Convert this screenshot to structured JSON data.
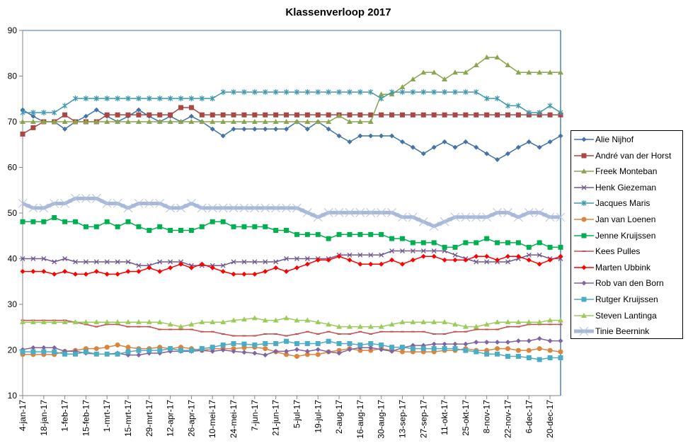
{
  "chart_data": {
    "type": "line",
    "title": "Klassenverloop 2017",
    "xlabel": "",
    "ylabel": "",
    "ylim": [
      10,
      90
    ],
    "yticks": [
      10,
      20,
      30,
      40,
      50,
      60,
      70,
      80,
      90
    ],
    "grid": false,
    "legend_position": "right",
    "x": [
      "4-jan-17",
      "11-jan-17",
      "18-jan-17",
      "25-jan-17",
      "1-feb-17",
      "8-feb-17",
      "15-feb-17",
      "22-feb-17",
      "1-mrt-17",
      "8-mrt-17",
      "15-mrt-17",
      "22-mrt-17",
      "29-mrt-17",
      "5-apr-17",
      "12-apr-17",
      "19-apr-17",
      "26-apr-17",
      "3-mei-17",
      "10-mei-17",
      "17-mei-17",
      "24-mei-17",
      "31-mei-17",
      "7-jun-17",
      "14-jun-17",
      "21-jun-17",
      "28-jun-17",
      "5-jul-17",
      "12-jul-17",
      "19-jul-17",
      "26-jul-17",
      "2-aug-17",
      "9-aug-17",
      "16-aug-17",
      "23-aug-17",
      "30-aug-17",
      "6-sep-17",
      "13-sep-17",
      "20-sep-17",
      "27-sep-17",
      "4-okt-17",
      "11-okt-17",
      "18-okt-17",
      "25-okt-17",
      "1-nov-17",
      "8-nov-17",
      "15-nov-17",
      "22-nov-17",
      "29-nov-17",
      "6-dec-17",
      "13-dec-17",
      "20-dec-17",
      "27-dec-17"
    ],
    "xticks": [
      "4-jan-17",
      "18-jan-17",
      "1-feb-17",
      "15-feb-17",
      "1-mrt-17",
      "15-mrt-17",
      "29-mrt-17",
      "12-apr-17",
      "26-apr-17",
      "10-mei-17",
      "24-mei-17",
      "7-jun-17",
      "21-jun-17",
      "5-jul-17",
      "19-jul-17",
      "2-aug-17",
      "16-aug-17",
      "30-aug-17",
      "13-sep-17",
      "27-sep-17",
      "11-okt-17",
      "25-okt-17",
      "8-nov-17",
      "22-nov-17",
      "6-dec-17",
      "20-dec-17"
    ],
    "series": [
      {
        "name": "Alie Nijhof",
        "color": "#4572a7",
        "marker": "diamond",
        "values": [
          72.6,
          71.2,
          70,
          70,
          68.4,
          70,
          71.2,
          72.6,
          71.2,
          70,
          71.2,
          72.6,
          71.2,
          70,
          71.2,
          70,
          71.2,
          70,
          68.4,
          66.9,
          68.4,
          68.4,
          68.4,
          68.4,
          68.4,
          68.4,
          70,
          68.4,
          70,
          68.4,
          66.9,
          65.6,
          66.9,
          66.9,
          66.9,
          66.9,
          65.6,
          64.4,
          63,
          64.4,
          65.6,
          64.4,
          65.6,
          64.4,
          63,
          61.7,
          63,
          64.4,
          65.6,
          64.4,
          65.6,
          66.9
        ]
      },
      {
        "name": "André van der Horst",
        "color": "#aa4643",
        "marker": "square",
        "values": [
          67.3,
          68.7,
          70,
          70,
          71.5,
          70,
          70,
          70,
          71.5,
          71.5,
          71.5,
          71.5,
          71.5,
          71.5,
          71.5,
          73.1,
          73.1,
          71.5,
          71.5,
          71.5,
          71.5,
          71.5,
          71.5,
          71.5,
          71.5,
          71.5,
          71.5,
          71.5,
          71.5,
          71.5,
          71.5,
          71.5,
          71.5,
          71.5,
          71.5,
          71.5,
          71.5,
          71.5,
          71.5,
          71.5,
          71.5,
          71.5,
          71.5,
          71.5,
          71.5,
          71.5,
          71.5,
          71.5,
          71.5,
          71.5,
          71.5,
          71.5
        ]
      },
      {
        "name": "Freek Monteban",
        "color": "#89a54e",
        "marker": "triangle",
        "values": [
          70,
          70,
          70,
          70,
          70,
          70,
          70,
          70,
          70,
          70,
          70,
          70,
          70,
          70,
          70,
          70,
          70,
          70,
          70,
          70,
          70,
          70,
          70,
          70,
          70,
          70,
          70,
          70,
          70,
          70,
          71.3,
          70,
          70,
          70,
          76,
          76,
          77.6,
          79.3,
          80.8,
          80.8,
          79.3,
          80.8,
          80.8,
          82.4,
          84.1,
          84.1,
          82.4,
          80.8,
          80.8,
          80.8,
          80.8,
          80.8
        ]
      },
      {
        "name": "Henk Giezeman",
        "color": "#71588f",
        "marker": "x",
        "values": [
          40,
          40,
          40,
          39.3,
          40,
          39.3,
          39.3,
          39.3,
          39.3,
          39.3,
          39.3,
          38.5,
          38.5,
          39.3,
          39.3,
          39.3,
          38.5,
          38.5,
          38.5,
          38.5,
          39.3,
          39.3,
          39.3,
          39.3,
          39.3,
          40,
          40,
          40,
          40,
          40,
          40.8,
          40.8,
          40.8,
          40.8,
          40.8,
          41.7,
          41.7,
          41.7,
          41.7,
          41.7,
          41.7,
          40.8,
          40,
          39.3,
          39.3,
          39.3,
          39.3,
          40,
          40.8,
          40.8,
          40,
          40
        ]
      },
      {
        "name": "Jacques Maris",
        "color": "#4198af",
        "marker": "asterisk",
        "values": [
          72,
          72,
          72,
          72,
          73.5,
          75.1,
          75.1,
          75.1,
          75.1,
          75.1,
          75.1,
          75.1,
          75.1,
          75.1,
          75.1,
          75.1,
          75.1,
          75.1,
          75.1,
          76.5,
          76.5,
          76.5,
          76.5,
          76.5,
          76.5,
          76.5,
          76.5,
          76.5,
          76.5,
          76.5,
          76.5,
          76.5,
          76.5,
          76.5,
          75.1,
          76.5,
          76.5,
          76.5,
          76.5,
          76.5,
          76.5,
          76.5,
          76.5,
          76.5,
          75.1,
          75.1,
          73.5,
          73.5,
          72,
          72,
          73.5,
          72
        ]
      },
      {
        "name": "Jan van Loenen",
        "color": "#db843d",
        "marker": "circle",
        "values": [
          19,
          19,
          19,
          19,
          19.7,
          19.9,
          20.3,
          20.3,
          20.6,
          21.1,
          20.6,
          20.3,
          20.3,
          20.6,
          20.3,
          20.6,
          20.3,
          19.9,
          20.3,
          20.3,
          20.3,
          20.5,
          20.6,
          20.3,
          19.6,
          19,
          18.6,
          19,
          19,
          19.6,
          19.9,
          20.3,
          19.9,
          19.9,
          20.3,
          19.9,
          19.6,
          19.6,
          19.6,
          19.6,
          19.9,
          19.9,
          20.3,
          19.9,
          19.9,
          20.3,
          20.3,
          19.9,
          19.9,
          20.3,
          19.9,
          19.6
        ]
      },
      {
        "name": "Jenne Kruijssen",
        "color": "#00b050",
        "marker": "square",
        "values": [
          48.1,
          48.1,
          48.1,
          49,
          48.1,
          48.1,
          47,
          47,
          48.1,
          47,
          48.1,
          47,
          46.2,
          47,
          46.2,
          46.2,
          46.2,
          47,
          48.1,
          48.1,
          47,
          47,
          47,
          47,
          46.2,
          46.2,
          45.3,
          45.3,
          45.3,
          44.4,
          45.3,
          45.3,
          45.3,
          45.3,
          45.3,
          44.4,
          44.4,
          43.5,
          43.5,
          43.5,
          42.5,
          42.5,
          43.5,
          43.5,
          44.4,
          43.5,
          43.5,
          43.5,
          42.5,
          43.5,
          42.5,
          42.5
        ]
      },
      {
        "name": "Kees Pulles",
        "color": "#c0504d",
        "marker": "dash",
        "values": [
          26.5,
          26.5,
          26.5,
          26.5,
          26.5,
          26.1,
          25.6,
          25.1,
          25.6,
          25.6,
          25.1,
          25.1,
          25.1,
          24.5,
          24.5,
          24.5,
          24.5,
          24,
          24,
          23.5,
          23.1,
          23.1,
          23.1,
          23.5,
          23.5,
          23.1,
          23.5,
          24,
          23.5,
          24,
          23.5,
          23.5,
          24,
          23.5,
          24,
          24,
          24,
          24,
          24,
          23.5,
          23.5,
          24,
          24,
          24.5,
          24.5,
          24.5,
          25.1,
          25.1,
          25.6,
          25.6,
          25.6,
          25.6
        ]
      },
      {
        "name": "Marten Ubbink",
        "color": "#ff0000",
        "marker": "diamond",
        "values": [
          37.2,
          37.2,
          37.2,
          36.6,
          37.2,
          36.6,
          36.6,
          37.2,
          36.6,
          36.6,
          37.2,
          37.2,
          38,
          37.2,
          38,
          38.8,
          38,
          38.8,
          38,
          37.2,
          36.6,
          36.6,
          36.6,
          37.2,
          38,
          37.2,
          38,
          38.8,
          39.7,
          39.7,
          40.5,
          39.7,
          38.8,
          38.8,
          38.8,
          39.7,
          38.8,
          39.7,
          40.5,
          40.5,
          39.7,
          39.7,
          39.7,
          40.5,
          40.5,
          39.7,
          40.5,
          40.5,
          39.7,
          38.8,
          39.7,
          40.5
        ]
      },
      {
        "name": "Rob van den Born",
        "color": "#8064a2",
        "marker": "diamond",
        "values": [
          20.1,
          20.5,
          20.5,
          20.5,
          19.7,
          19.7,
          19.3,
          19.1,
          19.1,
          19.3,
          18.9,
          18.9,
          19.3,
          19.3,
          19.7,
          19.7,
          19.7,
          19.9,
          19.7,
          20,
          19.7,
          19.5,
          19.3,
          18.9,
          19.7,
          19.7,
          20.1,
          19.7,
          20.1,
          19.6,
          19.3,
          20.1,
          20.5,
          20.5,
          20.1,
          19.7,
          20.5,
          21,
          21,
          21.3,
          21.3,
          21.3,
          21.3,
          21.7,
          21.7,
          21.7,
          21.7,
          22,
          22,
          22.5,
          22,
          22
        ]
      },
      {
        "name": "Rutger Kruijssen",
        "color": "#4bacc6",
        "marker": "square",
        "values": [
          19.6,
          19.6,
          19.6,
          19.6,
          19.1,
          19.1,
          19.6,
          19.1,
          19.1,
          19.1,
          19.6,
          19.9,
          19.9,
          19.9,
          20.3,
          19.9,
          19.9,
          20.3,
          20.6,
          21.1,
          21.4,
          21.3,
          21.1,
          21.4,
          21.4,
          21.9,
          21.4,
          21.4,
          21.4,
          21.9,
          21.4,
          21.4,
          21.1,
          21.4,
          21.1,
          20.6,
          20.6,
          20.3,
          20.3,
          20.3,
          20.3,
          20.3,
          19.9,
          19.6,
          19.1,
          19.1,
          18.6,
          18.6,
          18.3,
          17.9,
          18.3,
          18.3
        ]
      },
      {
        "name": "Steven Lantinga",
        "color": "#9bcb5b",
        "marker": "triangle",
        "values": [
          26.1,
          26.1,
          26.1,
          26.1,
          26.1,
          26.1,
          26.1,
          26.1,
          26.1,
          26.1,
          26.1,
          26.1,
          26.1,
          26.1,
          25.6,
          25.1,
          25.6,
          26.1,
          26.1,
          26.1,
          26.5,
          26.7,
          27,
          26.5,
          26.5,
          27,
          26.5,
          26.5,
          26.1,
          25.6,
          25.1,
          25.1,
          25.1,
          25.1,
          25.1,
          25.6,
          26.1,
          26.1,
          26.1,
          26.1,
          26.1,
          25.6,
          25.1,
          25.1,
          25.6,
          26.1,
          26.1,
          26.1,
          26.1,
          26.1,
          26.5,
          26.5
        ]
      },
      {
        "name": "Tinie Beernink",
        "color": "#a8b8d8",
        "marker": "x",
        "thick": true,
        "values": [
          52.1,
          51.1,
          51.1,
          52.1,
          52.1,
          53.2,
          53.2,
          53.2,
          52.1,
          52.1,
          51.1,
          52.1,
          52.1,
          52.1,
          51.1,
          51.1,
          52.1,
          51.1,
          51.1,
          51.1,
          51.1,
          51.1,
          51.1,
          51.1,
          51.1,
          51.1,
          51.1,
          50.1,
          49.1,
          50.1,
          50.1,
          50.1,
          50.1,
          50.1,
          50.1,
          50.1,
          49.1,
          49.1,
          48.1,
          47.1,
          48.1,
          49.1,
          49.1,
          49.1,
          49.1,
          50.1,
          50.1,
          49.1,
          50.1,
          50.1,
          49.1,
          49.1
        ]
      }
    ]
  }
}
